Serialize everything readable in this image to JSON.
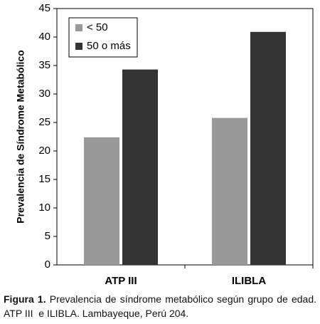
{
  "chart_data": {
    "type": "bar",
    "y_label": "Prevalencia de Síndrome Metabólico",
    "categories": [
      "ATP III",
      "ILIBLA"
    ],
    "series": [
      {
        "name": "< 50",
        "color": "#999999",
        "values": [
          22.4,
          25.8
        ]
      },
      {
        "name": "50 o más",
        "color": "#333333",
        "values": [
          34.3,
          40.9
        ]
      }
    ],
    "ylim": [
      0,
      45
    ],
    "yticks": [
      0,
      5,
      10,
      15,
      20,
      25,
      30,
      35,
      40,
      45
    ],
    "legend": "upper left"
  },
  "caption": {
    "label": "Figura 1.",
    "text": "Prevalencia de síndrome metabólico según grupo de edad. ATP III  e ILIBLA. Lambayeque, Perú 204."
  }
}
